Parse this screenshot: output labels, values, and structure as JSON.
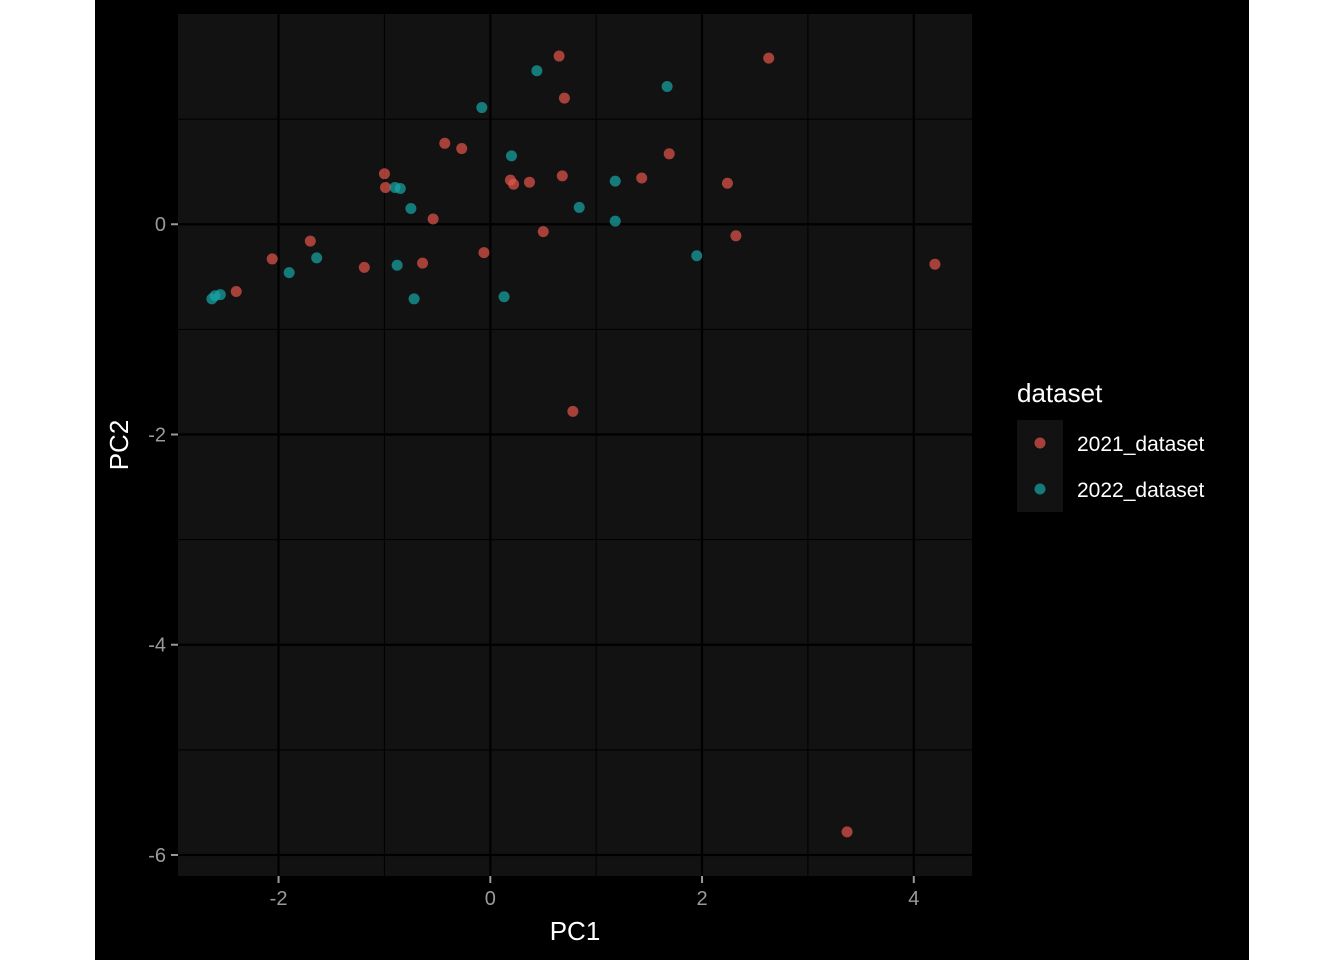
{
  "chart_data": {
    "type": "scatter",
    "xlabel": "PC1",
    "ylabel": "PC2",
    "xlim": [
      -2.95,
      4.55
    ],
    "ylim": [
      -6.2,
      2.0
    ],
    "x_ticks": [
      -2,
      0,
      2,
      4
    ],
    "y_ticks": [
      -6,
      -4,
      -2,
      0
    ],
    "x_tick_labels": [
      "-2",
      "0",
      "2",
      "4"
    ],
    "y_tick_labels": [
      "-6",
      "-4",
      "-2",
      "0"
    ],
    "grid": true,
    "background": "#121212",
    "grid_color": "#000000",
    "legend": {
      "title": "dataset",
      "position": "right"
    },
    "series": [
      {
        "name": "2021_dataset",
        "color": "#e6554c",
        "points": [
          [
            0.65,
            1.6
          ],
          [
            2.63,
            1.58
          ],
          [
            0.7,
            1.2
          ],
          [
            -0.43,
            0.77
          ],
          [
            -0.27,
            0.72
          ],
          [
            1.69,
            0.67
          ],
          [
            -1.0,
            0.48
          ],
          [
            0.68,
            0.46
          ],
          [
            1.43,
            0.44
          ],
          [
            -0.99,
            0.35
          ],
          [
            0.19,
            0.42
          ],
          [
            0.22,
            0.38
          ],
          [
            0.37,
            0.4
          ],
          [
            2.24,
            0.39
          ],
          [
            -0.54,
            0.05
          ],
          [
            0.5,
            -0.07
          ],
          [
            2.32,
            -0.11
          ],
          [
            -1.7,
            -0.16
          ],
          [
            -0.06,
            -0.27
          ],
          [
            -2.06,
            -0.33
          ],
          [
            -0.64,
            -0.37
          ],
          [
            -1.19,
            -0.41
          ],
          [
            4.2,
            -0.38
          ],
          [
            -2.4,
            -0.64
          ],
          [
            0.78,
            -1.78
          ],
          [
            3.37,
            -5.78
          ]
        ]
      },
      {
        "name": "2022_dataset",
        "color": "#17a6a6",
        "points": [
          [
            0.44,
            1.46
          ],
          [
            1.67,
            1.31
          ],
          [
            -0.08,
            1.11
          ],
          [
            0.2,
            0.65
          ],
          [
            -0.9,
            0.35
          ],
          [
            -0.85,
            0.34
          ],
          [
            1.18,
            0.41
          ],
          [
            0.84,
            0.16
          ],
          [
            -0.75,
            0.15
          ],
          [
            1.18,
            0.03
          ],
          [
            1.95,
            -0.3
          ],
          [
            -1.64,
            -0.32
          ],
          [
            -0.88,
            -0.39
          ],
          [
            -1.9,
            -0.46
          ],
          [
            -2.6,
            -0.68
          ],
          [
            -2.55,
            -0.67
          ],
          [
            -2.63,
            -0.71
          ],
          [
            -0.72,
            -0.71
          ],
          [
            0.13,
            -0.69
          ]
        ]
      }
    ]
  }
}
